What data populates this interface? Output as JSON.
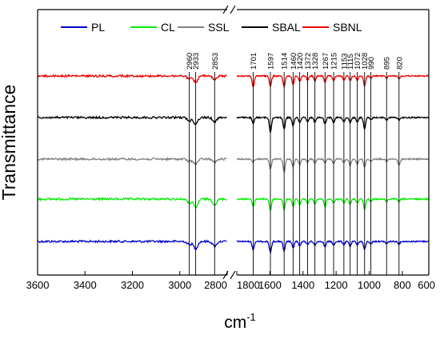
{
  "chart_data": {
    "type": "line",
    "title": "",
    "ylabel": "Transmittance",
    "xlabel": "cm",
    "xlabel_superscript": "-1",
    "x_axis": "reversed, broken between 2800 and 1800",
    "x_ranges": [
      [
        3600,
        2800
      ],
      [
        1800,
        640
      ]
    ],
    "x_ticks": [
      "3600",
      "3400",
      "3200",
      "3000",
      "2800",
      "1800",
      "1600",
      "1400",
      "1200",
      "1000",
      "800",
      "600"
    ],
    "y_ticks_shown": false,
    "grid": false,
    "legend_position": "top",
    "series": [
      {
        "name": "PL",
        "color": "#0000cc",
        "offset": 0
      },
      {
        "name": "CL",
        "color": "#00ee00",
        "offset": 1
      },
      {
        "name": "SSL",
        "color": "#808080",
        "offset": 2
      },
      {
        "name": "SBAL",
        "color": "#000000",
        "offset": 3
      },
      {
        "name": "SBNL",
        "color": "#ee0000",
        "offset": 4
      }
    ],
    "peaks": [
      {
        "x": 2960,
        "label": "2960"
      },
      {
        "x": 2933,
        "label": "2933"
      },
      {
        "x": 2853,
        "label": "2853"
      },
      {
        "x": 1701,
        "label": "1701"
      },
      {
        "x": 1597,
        "label": "1597"
      },
      {
        "x": 1514,
        "label": "1514"
      },
      {
        "x": 1460,
        "label": "1460"
      },
      {
        "x": 1420,
        "label": "1420"
      },
      {
        "x": 1372,
        "label": "1372"
      },
      {
        "x": 1328,
        "label": "1328"
      },
      {
        "x": 1267,
        "label": "1267"
      },
      {
        "x": 1215,
        "label": "1215"
      },
      {
        "x": 1153,
        "label": "1153"
      },
      {
        "x": 1115,
        "label": "1115"
      },
      {
        "x": 1072,
        "label": "1072"
      },
      {
        "x": 1028,
        "label": "1028"
      },
      {
        "x": 990,
        "label": "990"
      },
      {
        "x": 895,
        "label": "895"
      },
      {
        "x": 820,
        "label": "820"
      }
    ],
    "peak_depth": {
      "PL": {
        "2960": 4,
        "2933": 9,
        "2853": 6,
        "1701": 10,
        "1597": 14,
        "1514": 12,
        "1460": 8,
        "1420": 6,
        "1372": 4,
        "1328": 5,
        "1267": 7,
        "1215": 5,
        "1153": 4,
        "1115": 6,
        "1072": 4,
        "1028": 10,
        "990": 3,
        "895": 3,
        "820": 3
      },
      "CL": {
        "2960": 5,
        "2933": 11,
        "2853": 7,
        "1701": 9,
        "1597": 14,
        "1514": 13,
        "1460": 9,
        "1420": 7,
        "1372": 5,
        "1328": 6,
        "1267": 9,
        "1215": 5,
        "1153": 5,
        "1115": 7,
        "1072": 5,
        "1028": 13,
        "990": 3,
        "895": 3,
        "820": 3
      },
      "SSL": {
        "2960": 3,
        "2933": 6,
        "2853": 4,
        "1701": 4,
        "1597": 12,
        "1514": 16,
        "1460": 9,
        "1420": 7,
        "1372": 4,
        "1328": 5,
        "1267": 5,
        "1215": 6,
        "1153": 4,
        "1115": 8,
        "1072": 6,
        "1028": 10,
        "990": 3,
        "895": 3,
        "820": 8
      },
      "SBAL": {
        "2960": 4,
        "2933": 8,
        "2853": 5,
        "1701": 8,
        "1597": 18,
        "1514": 14,
        "1460": 10,
        "1420": 6,
        "1372": 5,
        "1328": 6,
        "1267": 8,
        "1215": 6,
        "1153": 5,
        "1115": 6,
        "1072": 6,
        "1028": 14,
        "990": 3,
        "895": 3,
        "820": 3
      },
      "SBNL": {
        "2960": 4,
        "2933": 8,
        "2853": 5,
        "1701": 14,
        "1597": 13,
        "1514": 13,
        "1460": 11,
        "1420": 7,
        "1372": 5,
        "1328": 6,
        "1267": 8,
        "1215": 6,
        "1153": 5,
        "1115": 6,
        "1072": 5,
        "1028": 12,
        "990": 3,
        "895": 3,
        "820": 3
      }
    }
  }
}
